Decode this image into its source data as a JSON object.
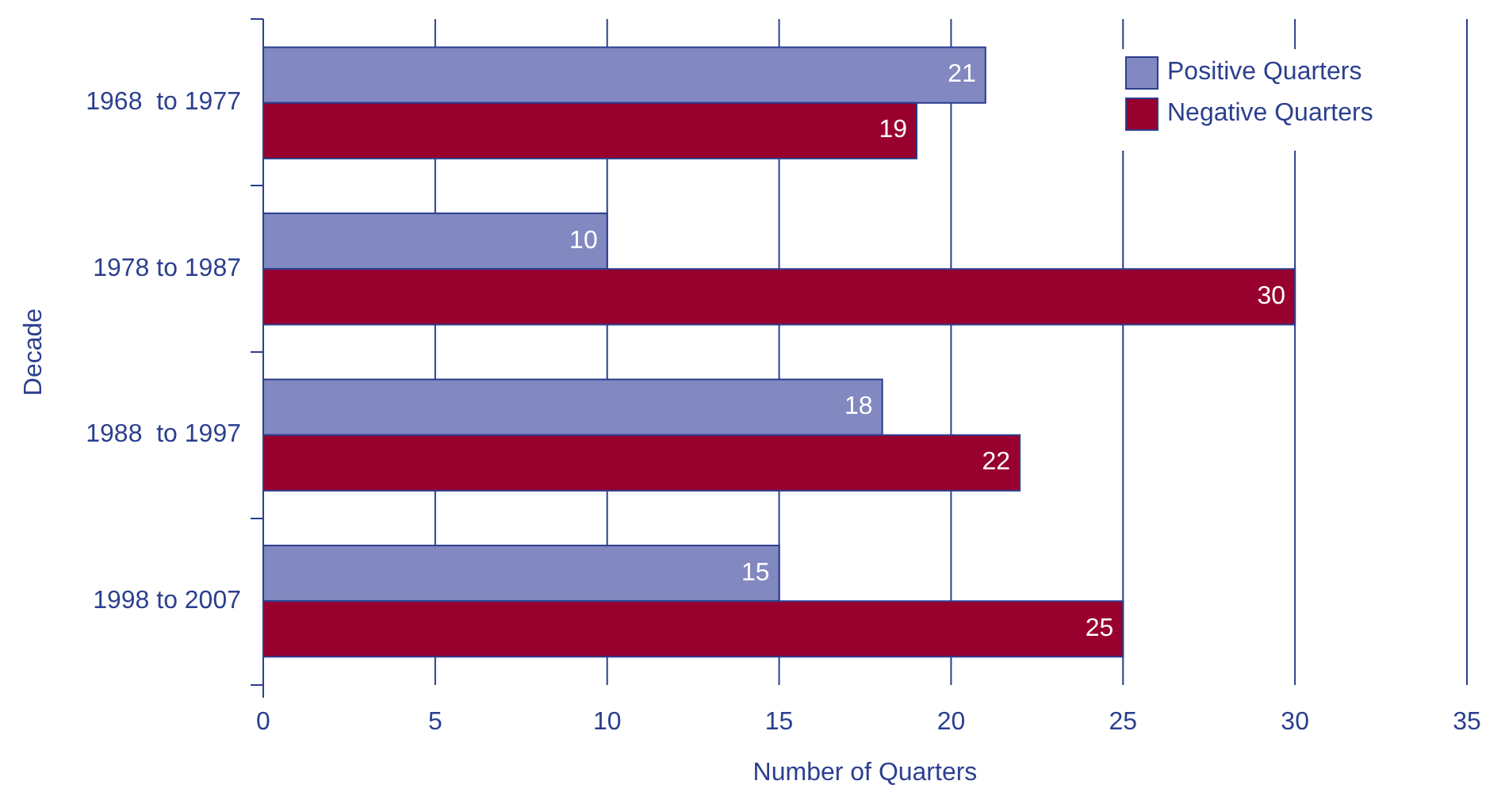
{
  "chart_data": {
    "type": "bar",
    "orientation": "horizontal",
    "xlabel": "Number of Quarters",
    "ylabel": "Decade",
    "categories": [
      "1968  to 1977",
      "1978 to 1987",
      "1988  to 1997",
      "1998 to 2007"
    ],
    "series": [
      {
        "name": "Positive Quarters",
        "color": "#8288c0",
        "values": [
          21,
          10,
          18,
          15
        ]
      },
      {
        "name": "Negative Quarters",
        "color": "#98002e",
        "values": [
          19,
          30,
          22,
          25
        ]
      }
    ],
    "xlim": [
      0,
      35
    ],
    "xticks": [
      0,
      5,
      10,
      15,
      20,
      25,
      30,
      35
    ],
    "grid": "x",
    "legend": "top right",
    "data_labels": true
  }
}
